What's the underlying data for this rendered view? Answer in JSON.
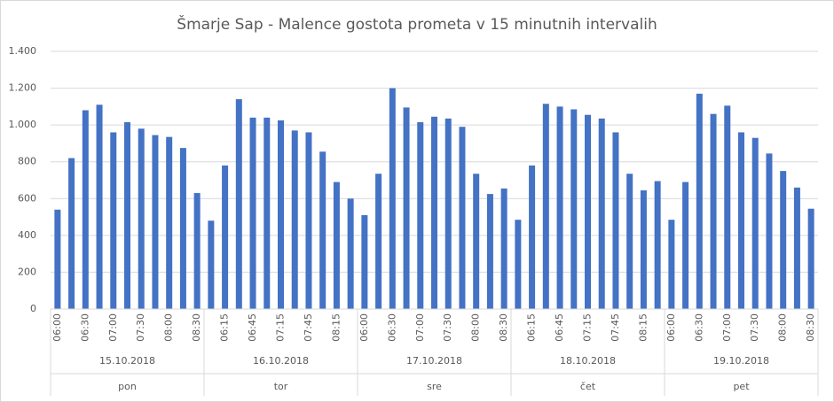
{
  "chart_data": {
    "type": "bar",
    "title": "Šmarje Sap - Malence gostota prometa v 15 minutnih intervalih",
    "categories": [
      "06:00",
      null,
      "06:30",
      null,
      "07:00",
      null,
      "07:30",
      null,
      "08:00",
      null,
      "08:30",
      null,
      "06:15",
      null,
      "06:45",
      null,
      "07:15",
      null,
      "07:45",
      null,
      "08:15",
      null,
      "06:00",
      null,
      "06:30",
      null,
      "07:00",
      null,
      "07:30",
      null,
      "08:00",
      null,
      "08:30",
      null,
      "06:15",
      null,
      "06:45",
      null,
      "07:15",
      null,
      "07:45",
      null,
      "08:15",
      null,
      "06:00",
      null,
      "06:30",
      null,
      "07:00",
      null,
      "07:30",
      null,
      "08:00",
      null,
      "08:30"
    ],
    "values": [
      540,
      820,
      1080,
      1110,
      960,
      1015,
      980,
      945,
      935,
      875,
      630,
      480,
      780,
      1140,
      1040,
      1040,
      1025,
      970,
      960,
      855,
      690,
      600,
      510,
      735,
      1200,
      1095,
      1015,
      1045,
      1035,
      990,
      735,
      625,
      655,
      485,
      780,
      1115,
      1100,
      1085,
      1055,
      1035,
      960,
      735,
      645,
      695,
      485,
      690,
      1170,
      1060,
      1105,
      960,
      930,
      845,
      750,
      660,
      545
    ],
    "groups": [
      {
        "label": "15.10.2018",
        "sublabel": "pon"
      },
      {
        "label": "16.10.2018",
        "sublabel": "tor"
      },
      {
        "label": "17.10.2018",
        "sublabel": "sre"
      },
      {
        "label": "18.10.2018",
        "sublabel": "čet"
      },
      {
        "label": "19.10.2018",
        "sublabel": "pet"
      }
    ],
    "color": "#4472c4",
    "ylim": [
      0,
      1400
    ],
    "yticks": [
      0,
      200,
      400,
      600,
      800,
      {
        "value": 1000,
        "label": "1.000"
      },
      {
        "value": 1200,
        "label": "1.200"
      },
      {
        "value": 1400,
        "label": "1.400"
      }
    ],
    "grid": true
  }
}
